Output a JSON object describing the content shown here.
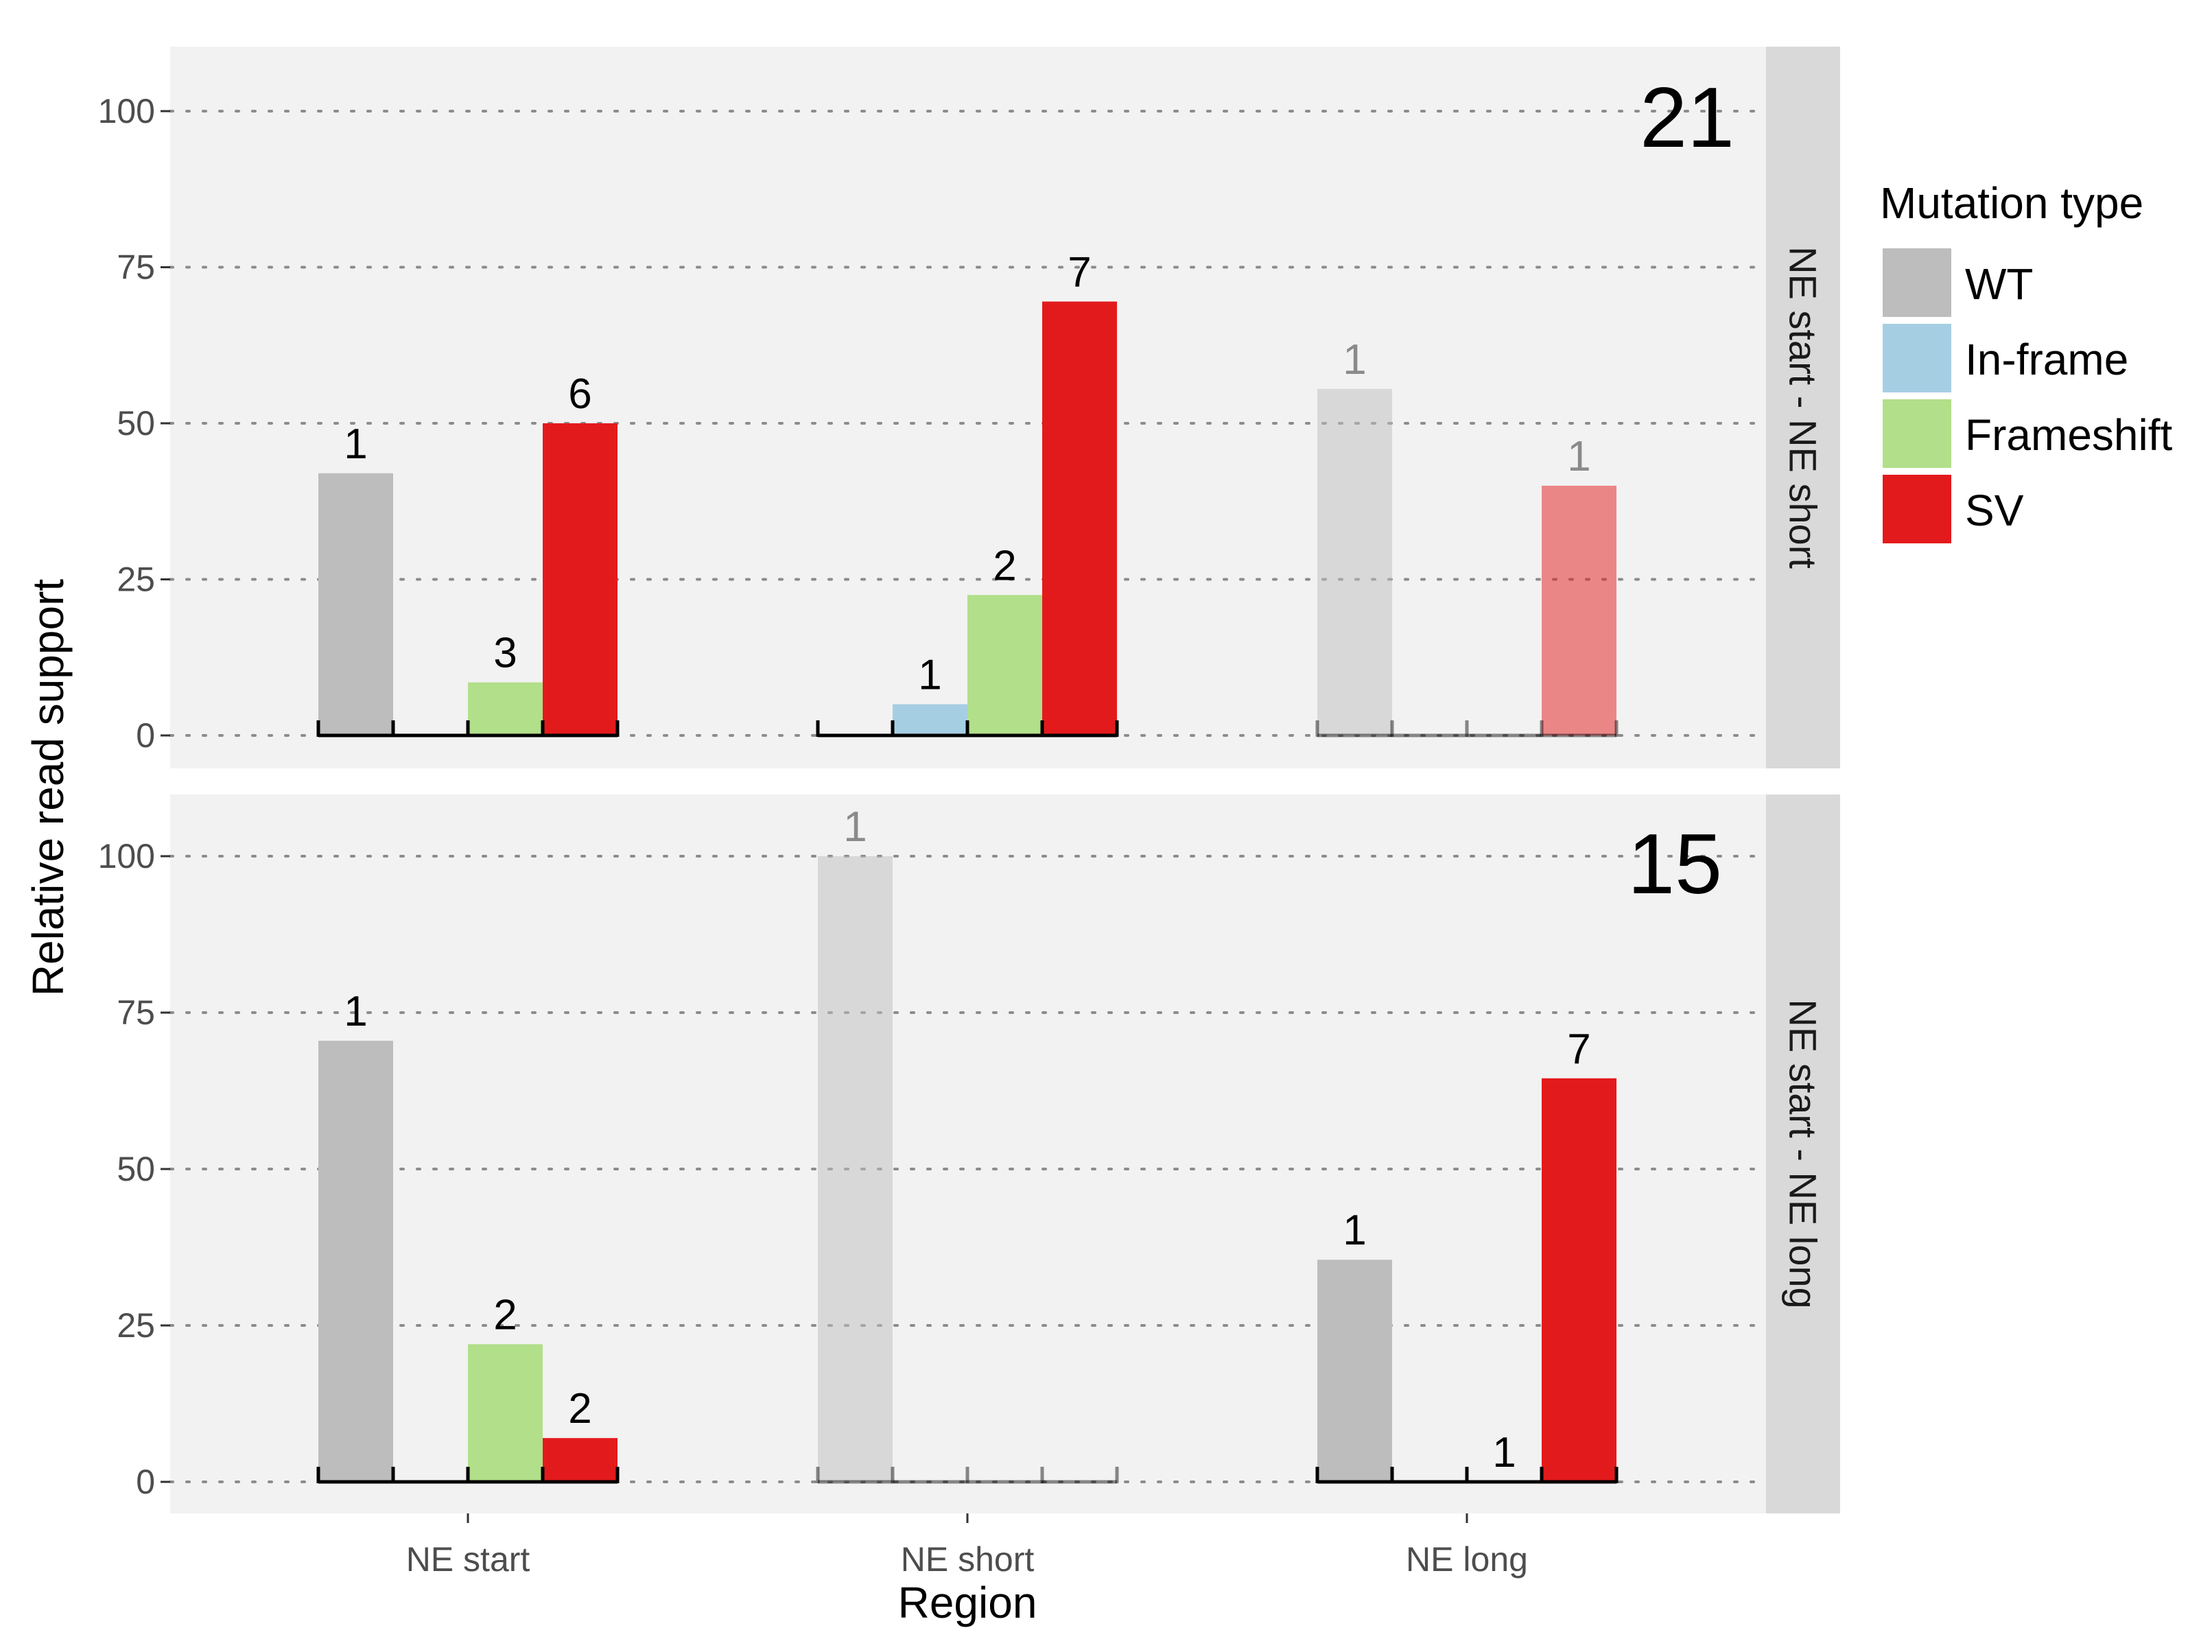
{
  "chart_data": {
    "type": "bar",
    "xlabel": "Region",
    "ylabel": "Relative read support",
    "categories": [
      "NE start",
      "NE short",
      "NE long"
    ],
    "yticks": [
      0,
      25,
      50,
      75,
      100
    ],
    "ylim": [
      0,
      100
    ],
    "grid": true,
    "legend": {
      "title": "Mutation type",
      "position": "right",
      "entries": [
        {
          "name": "WT",
          "color": "#bdbdbd"
        },
        {
          "name": "In-frame",
          "color": "#a6cee3"
        },
        {
          "name": "Frameshift",
          "color": "#b2df8a"
        },
        {
          "name": "SV",
          "color": "#e31a1c"
        }
      ]
    },
    "panels": [
      {
        "strip": "NE start - NE short",
        "count": "21",
        "groups": [
          {
            "category": "NE start",
            "faded": false,
            "bars": [
              {
                "type": "WT",
                "value": 42,
                "label": "1"
              },
              {
                "type": "In-frame",
                "value": 0,
                "label": ""
              },
              {
                "type": "Frameshift",
                "value": 8.5,
                "label": "3"
              },
              {
                "type": "SV",
                "value": 50,
                "label": "6"
              }
            ]
          },
          {
            "category": "NE short",
            "faded": false,
            "bars": [
              {
                "type": "WT",
                "value": 0,
                "label": ""
              },
              {
                "type": "In-frame",
                "value": 5,
                "label": "1"
              },
              {
                "type": "Frameshift",
                "value": 22.5,
                "label": "2"
              },
              {
                "type": "SV",
                "value": 69.5,
                "label": "7"
              }
            ]
          },
          {
            "category": "NE long",
            "faded": true,
            "bars": [
              {
                "type": "WT",
                "value": 55.5,
                "label": "1"
              },
              {
                "type": "In-frame",
                "value": 0,
                "label": ""
              },
              {
                "type": "Frameshift",
                "value": 0,
                "label": ""
              },
              {
                "type": "SV",
                "value": 40,
                "label": "1"
              }
            ]
          }
        ]
      },
      {
        "strip": "NE start - NE long",
        "count": "15",
        "groups": [
          {
            "category": "NE start",
            "faded": false,
            "bars": [
              {
                "type": "WT",
                "value": 70.5,
                "label": "1"
              },
              {
                "type": "In-frame",
                "value": 0,
                "label": ""
              },
              {
                "type": "Frameshift",
                "value": 22,
                "label": "2"
              },
              {
                "type": "SV",
                "value": 7,
                "label": "2"
              }
            ]
          },
          {
            "category": "NE short",
            "faded": true,
            "bars": [
              {
                "type": "WT",
                "value": 100,
                "label": "1"
              },
              {
                "type": "In-frame",
                "value": 0,
                "label": ""
              },
              {
                "type": "Frameshift",
                "value": 0,
                "label": ""
              },
              {
                "type": "SV",
                "value": 0,
                "label": ""
              }
            ]
          },
          {
            "category": "NE long",
            "faded": false,
            "bars": [
              {
                "type": "WT",
                "value": 35.5,
                "label": "1"
              },
              {
                "type": "In-frame",
                "value": 0,
                "label": ""
              },
              {
                "type": "Frameshift",
                "value": 0,
                "label": "1"
              },
              {
                "type": "SV",
                "value": 64.5,
                "label": "7"
              }
            ]
          }
        ]
      }
    ]
  }
}
